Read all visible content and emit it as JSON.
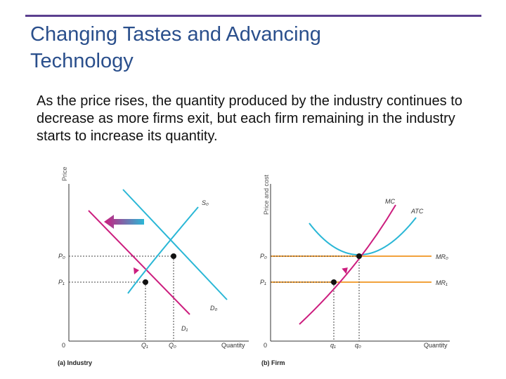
{
  "slide": {
    "title_line1": "Changing Tastes and Advancing",
    "title_line2": "Technology",
    "body": "As the price rises, the quantity produced by the industry continues to decrease as more firms exit, but each firm remaining in the industry starts to increase its quantity."
  },
  "colors": {
    "title": "#2a4f8c",
    "rule": "#5b3f8f",
    "supply": "#2ab7d6",
    "demand": "#cc1d7e",
    "mr": "#f2a23c",
    "marker": "#111111"
  },
  "panel_a": {
    "y_axis_label": "Price",
    "x_axis_label": "Quantity",
    "origin": "0",
    "caption": "(a) Industry",
    "price_labels": [
      "P₀",
      "P₁"
    ],
    "quantity_labels": [
      "Q₁",
      "Q₀"
    ],
    "curve_labels": {
      "s0": "S₀",
      "d0": "D₀",
      "d1": "D₁"
    }
  },
  "panel_b": {
    "y_axis_label": "Price and cost",
    "x_axis_label": "Quantity",
    "origin": "0",
    "caption": "(b) Firm",
    "price_labels": [
      "P₀",
      "P₁"
    ],
    "quantity_labels": [
      "q₁",
      "q₀"
    ],
    "curve_labels": {
      "mc": "MC",
      "atc": "ATC",
      "mr0": "MR₀",
      "mr1": "MR₁"
    }
  }
}
